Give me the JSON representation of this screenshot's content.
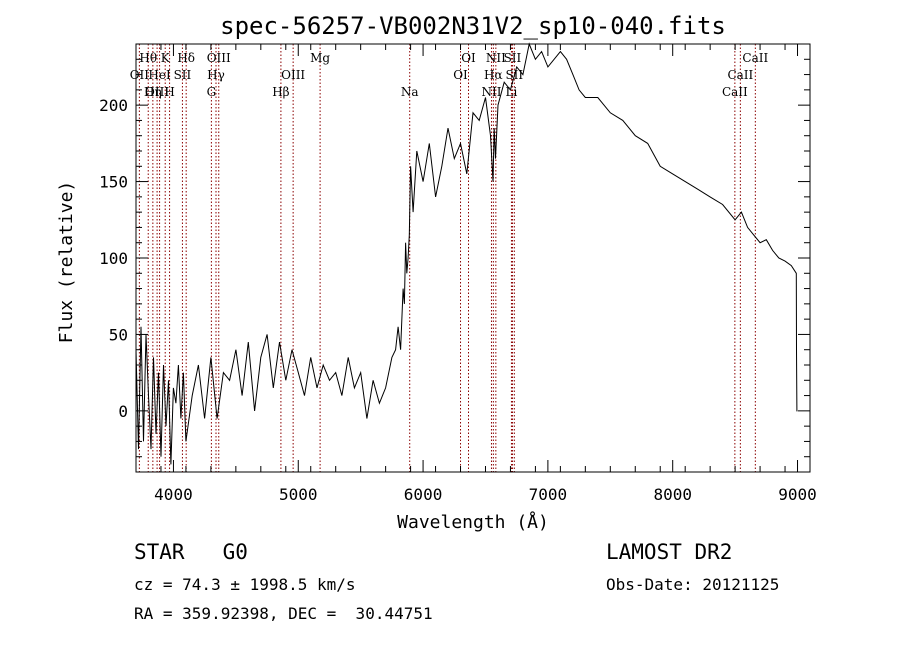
{
  "chart_data": {
    "type": "line",
    "title": "spec-56257-VB002N31V2_sp10-040.fits",
    "xlabel": "Wavelength (Å)",
    "ylabel": "Flux (relative)",
    "xlim": [
      3700,
      9100
    ],
    "ylim": [
      -40,
      240
    ],
    "xticks": [
      4000,
      5000,
      6000,
      7000,
      8000,
      9000
    ],
    "yticks": [
      0,
      50,
      100,
      150,
      200
    ],
    "line_color": "#000000",
    "marker_color": "#8b0000",
    "spectrum": {
      "x": [
        3700,
        3720,
        3740,
        3760,
        3780,
        3800,
        3820,
        3840,
        3860,
        3880,
        3900,
        3920,
        3940,
        3960,
        3980,
        4000,
        4020,
        4040,
        4060,
        4080,
        4100,
        4150,
        4200,
        4250,
        4300,
        4350,
        4400,
        4450,
        4500,
        4550,
        4600,
        4650,
        4700,
        4750,
        4800,
        4850,
        4900,
        4950,
        5000,
        5050,
        5100,
        5150,
        5200,
        5250,
        5300,
        5350,
        5400,
        5450,
        5500,
        5550,
        5600,
        5650,
        5700,
        5750,
        5780,
        5800,
        5820,
        5840,
        5850,
        5860,
        5870,
        5880,
        5890,
        5900,
        5920,
        5950,
        6000,
        6050,
        6100,
        6150,
        6200,
        6250,
        6300,
        6350,
        6400,
        6450,
        6500,
        6540,
        6560,
        6570,
        6580,
        6600,
        6650,
        6700,
        6750,
        6800,
        6850,
        6900,
        6950,
        7000,
        7050,
        7100,
        7150,
        7200,
        7250,
        7300,
        7400,
        7500,
        7600,
        7700,
        7800,
        7900,
        8000,
        8100,
        8200,
        8300,
        8400,
        8500,
        8550,
        8600,
        8650,
        8700,
        8750,
        8800,
        8850,
        8900,
        8950,
        8990,
        8992,
        8995,
        9000
      ],
      "y": [
        40,
        -25,
        55,
        -20,
        50,
        10,
        -25,
        35,
        -15,
        25,
        -30,
        30,
        -10,
        20,
        -35,
        15,
        5,
        30,
        -5,
        25,
        -20,
        10,
        30,
        -5,
        35,
        -5,
        25,
        20,
        40,
        10,
        45,
        0,
        35,
        50,
        15,
        45,
        20,
        40,
        25,
        10,
        35,
        15,
        30,
        20,
        25,
        10,
        35,
        15,
        25,
        -5,
        20,
        5,
        15,
        35,
        40,
        55,
        40,
        80,
        70,
        110,
        90,
        100,
        115,
        160,
        130,
        170,
        150,
        175,
        140,
        160,
        185,
        165,
        175,
        155,
        195,
        190,
        205,
        180,
        150,
        185,
        165,
        200,
        215,
        210,
        225,
        220,
        240,
        230,
        235,
        225,
        230,
        235,
        230,
        220,
        210,
        205,
        205,
        195,
        190,
        180,
        175,
        160,
        155,
        150,
        145,
        140,
        135,
        125,
        130,
        120,
        115,
        110,
        112,
        105,
        100,
        98,
        95,
        90,
        40,
        0,
        0
      ]
    },
    "lines": [
      {
        "label": "Hθ",
        "x": 3798,
        "row": 0
      },
      {
        "label": "OII",
        "x": 3727,
        "row": 1
      },
      {
        "label": "OIII",
        "x": 3869,
        "row": 2
      },
      {
        "label": "HeI",
        "x": 3889,
        "row": 1
      },
      {
        "label": "Hη",
        "x": 3835,
        "row": 2
      },
      {
        "label": "K",
        "x": 3934,
        "row": 0
      },
      {
        "label": "SII",
        "x": 4072,
        "row": 1
      },
      {
        "label": "H",
        "x": 3969,
        "row": 2
      },
      {
        "label": "Hδ",
        "x": 4102,
        "row": 0
      },
      {
        "label": "OIII",
        "x": 4363,
        "row": 0
      },
      {
        "label": "Hγ",
        "x": 4341,
        "row": 1
      },
      {
        "label": "G",
        "x": 4304,
        "row": 2
      },
      {
        "label": "OIII",
        "x": 4959,
        "row": 1
      },
      {
        "label": "Hβ",
        "x": 4861,
        "row": 2
      },
      {
        "label": "Mg",
        "x": 5175,
        "row": 0
      },
      {
        "label": "Na",
        "x": 5893,
        "row": 2
      },
      {
        "label": "OI",
        "x": 6364,
        "row": 0
      },
      {
        "label": "OI",
        "x": 6300,
        "row": 1
      },
      {
        "label": "NII",
        "x": 6583,
        "row": 0
      },
      {
        "label": "SII",
        "x": 6716,
        "row": 0
      },
      {
        "label": "Hα",
        "x": 6563,
        "row": 1
      },
      {
        "label": "SII",
        "x": 6731,
        "row": 1
      },
      {
        "label": "NII",
        "x": 6548,
        "row": 2
      },
      {
        "label": "Li",
        "x": 6708,
        "row": 2
      },
      {
        "label": "CaII",
        "x": 8662,
        "row": 0
      },
      {
        "label": "CaII",
        "x": 8542,
        "row": 1
      },
      {
        "label": "CaII",
        "x": 8498,
        "row": 2
      }
    ]
  },
  "info": {
    "class_label": "STAR",
    "subclass": "G0",
    "survey": "LAMOST DR2",
    "cz": "cz = 74.3 ± 1998.5 km/s",
    "obs_date": "Obs-Date: 20121125",
    "coords": "RA = 359.92398, DEC =  30.44751"
  }
}
